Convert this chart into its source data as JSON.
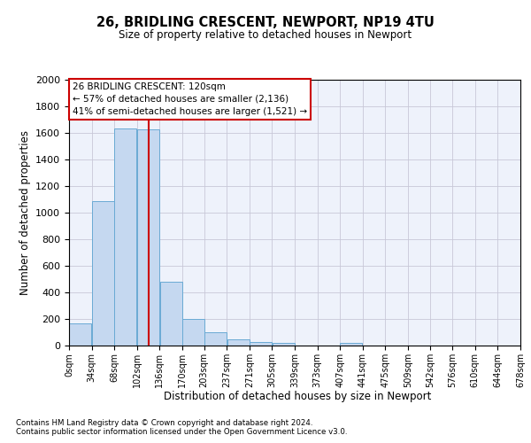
{
  "title_line1": "26, BRIDLING CRESCENT, NEWPORT, NP19 4TU",
  "title_line2": "Size of property relative to detached houses in Newport",
  "xlabel": "Distribution of detached houses by size in Newport",
  "ylabel": "Number of detached properties",
  "bar_color": "#c5d8f0",
  "bar_edge_color": "#6aaad4",
  "grid_color": "#c8c8d8",
  "bg_color": "#eef2fb",
  "annotation_box_color": "#cc0000",
  "annotation_line1": "26 BRIDLING CRESCENT: 120sqm",
  "annotation_line2": "← 57% of detached houses are smaller (2,136)",
  "annotation_line3": "41% of semi-detached houses are larger (1,521) →",
  "property_size": 120,
  "vline_color": "#cc0000",
  "categories": [
    "0sqm",
    "34sqm",
    "68sqm",
    "102sqm",
    "136sqm",
    "170sqm",
    "203sqm",
    "237sqm",
    "271sqm",
    "305sqm",
    "339sqm",
    "373sqm",
    "407sqm",
    "441sqm",
    "475sqm",
    "509sqm",
    "542sqm",
    "576sqm",
    "610sqm",
    "644sqm",
    "678sqm"
  ],
  "bin_edges": [
    0,
    34,
    68,
    102,
    136,
    170,
    203,
    237,
    271,
    305,
    339,
    373,
    407,
    441,
    475,
    509,
    542,
    576,
    610,
    644,
    678
  ],
  "bar_heights": [
    165,
    1085,
    1635,
    1630,
    480,
    200,
    100,
    45,
    30,
    20,
    0,
    0,
    20,
    0,
    0,
    0,
    0,
    0,
    0,
    0
  ],
  "ylim": [
    0,
    2000
  ],
  "yticks": [
    0,
    200,
    400,
    600,
    800,
    1000,
    1200,
    1400,
    1600,
    1800,
    2000
  ],
  "footnote1": "Contains HM Land Registry data © Crown copyright and database right 2024.",
  "footnote2": "Contains public sector information licensed under the Open Government Licence v3.0."
}
